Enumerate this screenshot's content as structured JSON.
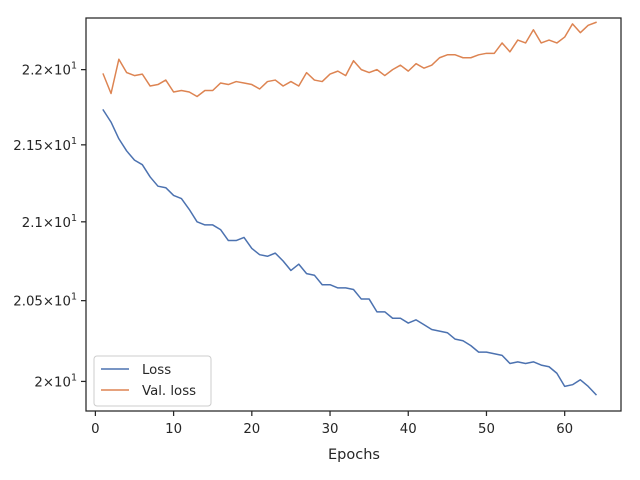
{
  "chart_data": {
    "type": "line",
    "title": "",
    "xlabel": "Epochs",
    "ylabel": "",
    "xlim": [
      -1.2,
      67.2
    ],
    "ylim": [
      19.82,
      22.35
    ],
    "y_scale": "log",
    "grid": false,
    "legend_position": "lower-left",
    "x_ticks": [
      0,
      10,
      20,
      30,
      40,
      50,
      60
    ],
    "y_ticks": [
      {
        "value": 20.0,
        "mantissa": "2",
        "exponent": "1"
      },
      {
        "value": 20.5,
        "mantissa": "2.05",
        "exponent": "1"
      },
      {
        "value": 21.0,
        "mantissa": "2.1",
        "exponent": "1"
      },
      {
        "value": 21.5,
        "mantissa": "2.15",
        "exponent": "1"
      },
      {
        "value": 22.0,
        "mantissa": "2.2",
        "exponent": "1"
      }
    ],
    "series": [
      {
        "name": "Loss",
        "color": "#4c72b0",
        "x": [
          1,
          2,
          3,
          4,
          5,
          6,
          7,
          8,
          9,
          10,
          11,
          12,
          13,
          14,
          15,
          16,
          17,
          18,
          19,
          20,
          21,
          22,
          23,
          24,
          25,
          26,
          27,
          28,
          29,
          30,
          31,
          32,
          33,
          34,
          35,
          36,
          37,
          38,
          39,
          40,
          41,
          42,
          43,
          44,
          45,
          46,
          47,
          48,
          49,
          50,
          51,
          52,
          53,
          54,
          55,
          56,
          57,
          58,
          59,
          60,
          61,
          62,
          63,
          64
        ],
        "values": [
          21.73,
          21.65,
          21.54,
          21.46,
          21.4,
          21.37,
          21.29,
          21.23,
          21.22,
          21.17,
          21.15,
          21.08,
          21.0,
          20.98,
          20.98,
          20.95,
          20.88,
          20.88,
          20.9,
          20.83,
          20.79,
          20.78,
          20.8,
          20.75,
          20.69,
          20.73,
          20.67,
          20.66,
          20.6,
          20.6,
          20.58,
          20.58,
          20.57,
          20.51,
          20.51,
          20.43,
          20.43,
          20.39,
          20.39,
          20.36,
          20.38,
          20.35,
          20.32,
          20.31,
          20.3,
          20.26,
          20.25,
          20.22,
          20.18,
          20.18,
          20.17,
          20.16,
          20.11,
          20.12,
          20.11,
          20.12,
          20.1,
          20.09,
          20.05,
          19.97,
          19.98,
          20.01,
          19.97,
          19.92
        ]
      },
      {
        "name": "Val. loss",
        "color": "#dd8452",
        "x": [
          1,
          2,
          3,
          4,
          5,
          6,
          7,
          8,
          9,
          10,
          11,
          12,
          13,
          14,
          15,
          16,
          17,
          18,
          19,
          20,
          21,
          22,
          23,
          24,
          25,
          26,
          27,
          28,
          29,
          30,
          31,
          32,
          33,
          34,
          35,
          36,
          37,
          38,
          39,
          40,
          41,
          42,
          43,
          44,
          45,
          46,
          47,
          48,
          49,
          50,
          51,
          52,
          53,
          54,
          55,
          56,
          57,
          58,
          59,
          60,
          61,
          62,
          63,
          64
        ],
        "values": [
          21.97,
          21.84,
          22.07,
          21.98,
          21.96,
          21.97,
          21.89,
          21.9,
          21.93,
          21.85,
          21.86,
          21.85,
          21.82,
          21.86,
          21.86,
          21.91,
          21.9,
          21.92,
          21.91,
          21.9,
          21.87,
          21.92,
          21.93,
          21.89,
          21.92,
          21.89,
          21.98,
          21.93,
          21.92,
          21.97,
          21.99,
          21.96,
          22.06,
          22.0,
          21.98,
          22.0,
          21.96,
          22.0,
          22.03,
          21.99,
          22.04,
          22.01,
          22.03,
          22.08,
          22.1,
          22.1,
          22.08,
          22.08,
          22.1,
          22.11,
          22.11,
          22.18,
          22.12,
          22.2,
          22.18,
          22.27,
          22.18,
          22.2,
          22.18,
          22.22,
          22.31,
          22.25,
          22.3,
          22.32
        ]
      }
    ]
  }
}
